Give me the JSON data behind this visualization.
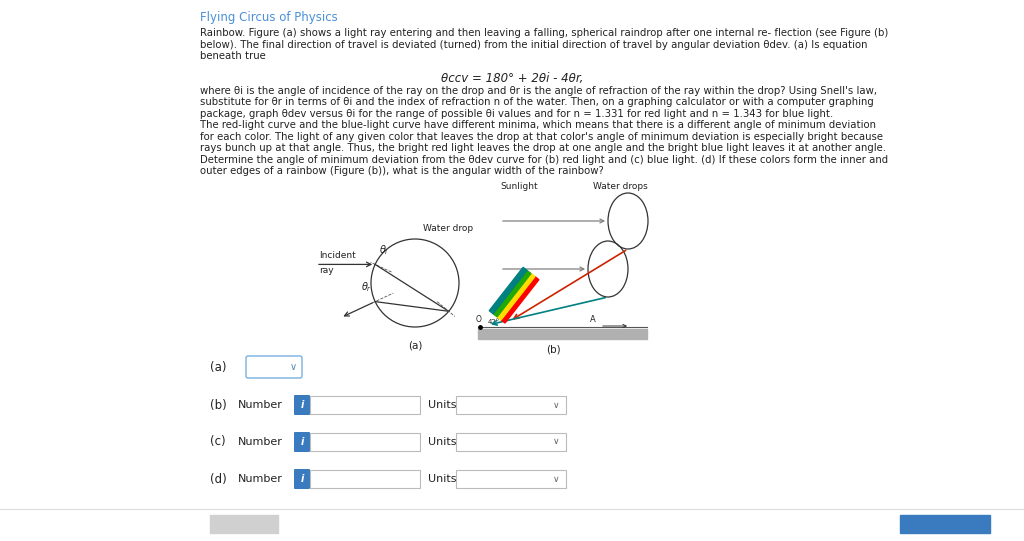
{
  "title": "Flying Circus of Physics",
  "title_color": "#4a90d9",
  "bg_color": "#eef2f7",
  "panel_bg": "#ffffff",
  "text_color": "#222222",
  "main_text_line1": "Rainbow. Figure (a) shows a light ray entering and then leaving a falling, spherical raindrop after one internal re- flection (see Figure (b)",
  "main_text_line2": "below). The final direction of travel is deviated (turned) from the initial direction of travel by angular deviation θdev. (a) Is equation",
  "main_text_line3": "beneath true",
  "equation": "θccv = 180° + 2θi - 4θr,",
  "para2_line1": "where θi is the angle of incidence of the ray on the drop and θr is the angle of refraction of the ray within the drop? Using Snell's law,",
  "para2_line2": "substitute for θr in terms of θi and the index of refraction n of the water. Then, on a graphing calculator or with a computer graphing",
  "para2_line3": "package, graph θdev versus θi for the range of possible θi values and for n = 1.331 for red light and n = 1.343 for blue light.",
  "para2_line4": "The red-light curve and the blue-light curve have different minima, which means that there is a different angle of minimum deviation",
  "para2_line5": "for each color. The light of any given color that leaves the drop at that color's angle of minimum deviation is especially bright because",
  "para2_line6": "rays bunch up at that angle. Thus, the bright red light leaves the drop at one angle and the bright blue light leaves it at another angle.",
  "para2_line7": "Determine the angle of minimum deviation from the θdev curve for (b) red light and (c) blue light. (d) If these colors form the inner and",
  "para2_line8": "outer edges of a rainbow (Figure (b)), what is the angular width of the rainbow?",
  "fig_a_label": "(a)",
  "fig_b_label": "(b)",
  "water_drop_label": "Water drop",
  "incident_ray_label": "Incident",
  "incident_ray_label2": "ray",
  "sunlight_label": "Sunlight",
  "water_drops_label": "Water drops",
  "label_a": "(a)",
  "label_b": "(b)",
  "label_c": "(c)",
  "label_d": "(d)",
  "number_label": "Number",
  "units_label": "Units",
  "blue_btn": "#3a7abf",
  "dropdown_border": "#b0c4d8"
}
